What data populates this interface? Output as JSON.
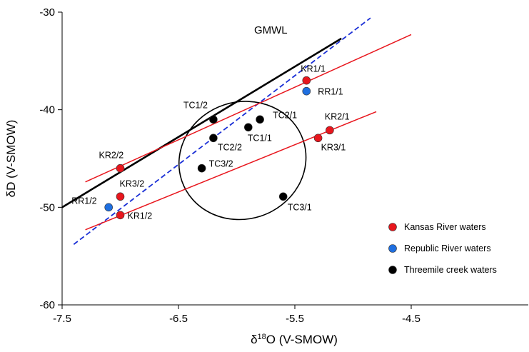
{
  "chart_data": {
    "type": "scatter",
    "title": "",
    "xlabel_prefix": "δ",
    "xlabel_sup": "18",
    "xlabel_rest": "O (V-SMOW)",
    "ylabel": "δD (V-SMOW)",
    "xlim": [
      -7.5,
      -4.2
    ],
    "ylim": [
      -60,
      -30
    ],
    "xticks": [
      -7.5,
      -6.5,
      -5.5,
      -4.5
    ],
    "xtick_labels": [
      "-7.5",
      "-6.5",
      "-5.5",
      "-4.5"
    ],
    "yticks": [
      -60,
      -50,
      -40,
      -30
    ],
    "ytick_labels": [
      "-60",
      "-50",
      "-40",
      "-30"
    ],
    "grid": false,
    "legend_position": "bottom-right",
    "series": [
      {
        "name": "Kansas River waters",
        "color": "#e8161d",
        "points": [
          {
            "label": "KR1/1",
            "x": -5.4,
            "y": -37
          },
          {
            "label": "KR2/1",
            "x": -5.2,
            "y": -42.1
          },
          {
            "label": "KR3/1",
            "x": -5.3,
            "y": -42.9
          },
          {
            "label": "KR2/2",
            "x": -7.0,
            "y": -46
          },
          {
            "label": "KR3/2",
            "x": -7.0,
            "y": -48.9
          },
          {
            "label": "KR1/2",
            "x": -7.0,
            "y": -50.8
          }
        ]
      },
      {
        "name": "Republic River waters",
        "color": "#1f6fe0",
        "points": [
          {
            "label": "RR1/1",
            "x": -5.4,
            "y": -38.1
          },
          {
            "label": "RR1/2",
            "x": -7.1,
            "y": -50
          }
        ]
      },
      {
        "name": "Threemile creek waters",
        "color": "#000000",
        "points": [
          {
            "label": "TC1/2",
            "x": -6.2,
            "y": -41
          },
          {
            "label": "TC2/1",
            "x": -5.8,
            "y": -41
          },
          {
            "label": "TC1/1",
            "x": -5.9,
            "y": -41.8
          },
          {
            "label": "TC2/2",
            "x": -6.2,
            "y": -42.9
          },
          {
            "label": "TC3/2",
            "x": -6.3,
            "y": -46
          },
          {
            "label": "TC3/1",
            "x": -5.6,
            "y": -48.9
          }
        ]
      }
    ],
    "lines": [
      {
        "name": "GMWL",
        "color": "#000000",
        "style": "solid",
        "width": 2.6,
        "x": [
          -7.5,
          -5.1
        ],
        "y": [
          -50,
          -32.7
        ]
      },
      {
        "name": "",
        "color": "#1a2fd6",
        "style": "dashed",
        "width": 1.8,
        "x": [
          -7.4,
          -4.85
        ],
        "y": [
          -53.8,
          -30.6
        ]
      },
      {
        "name": "",
        "color": "#e8161d",
        "style": "solid",
        "width": 1.5,
        "x": [
          -7.3,
          -4.5
        ],
        "y": [
          -47.4,
          -32.3
        ]
      },
      {
        "name": "",
        "color": "#e8161d",
        "style": "solid",
        "width": 1.5,
        "x": [
          -7.3,
          -4.8
        ],
        "y": [
          -52.3,
          -40.2
        ]
      }
    ],
    "annotations": [
      {
        "text": "GMWL",
        "x": -5.85,
        "y": -32.2
      }
    ],
    "ellipse": {
      "cx": -5.95,
      "cy": -45.2,
      "rx": 0.55,
      "ry": 6.0,
      "rotate": -18
    }
  }
}
